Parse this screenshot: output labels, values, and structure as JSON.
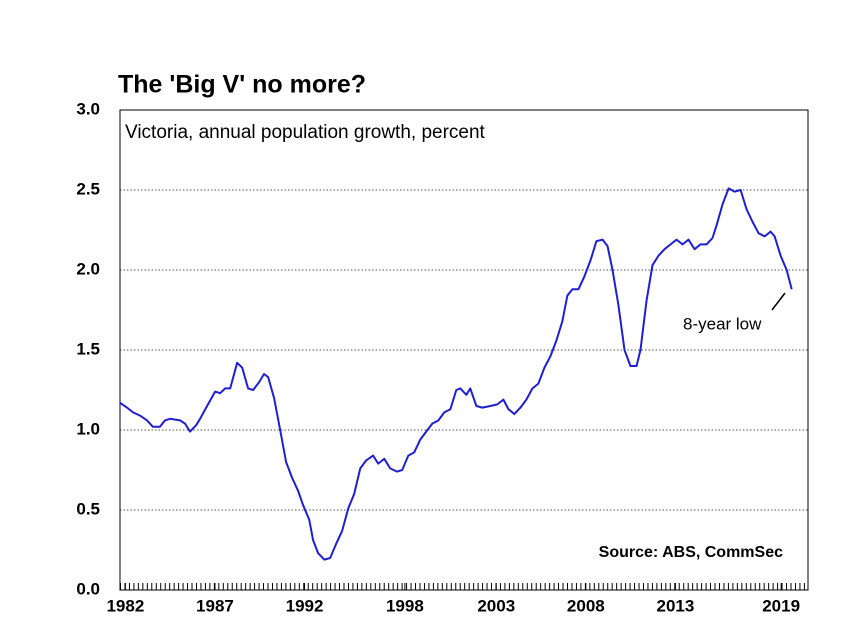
{
  "chart_data": {
    "type": "line",
    "title": "The 'Big V' no more?",
    "subtitle": "Victoria, annual population growth, percent",
    "source": "Source: ABS, CommSec",
    "annotation": "8-year low",
    "x": [
      1982.0,
      1982.39,
      1982.73,
      1983.12,
      1983.51,
      1983.84,
      1984.23,
      1984.51,
      1984.79,
      1985.35,
      1985.63,
      1985.91,
      1986.25,
      1986.47,
      1986.86,
      1987.31,
      1987.59,
      1987.87,
      1988.15,
      1988.54,
      1988.82,
      1989.15,
      1989.43,
      1989.77,
      1990.04,
      1990.27,
      1990.6,
      1990.94,
      1991.27,
      1991.61,
      1991.94,
      1992.22,
      1992.56,
      1992.78,
      1993.06,
      1993.4,
      1993.73,
      1994.07,
      1994.4,
      1994.74,
      1995.07,
      1995.41,
      1995.74,
      1996.13,
      1996.41,
      1996.75,
      1997.08,
      1997.47,
      1997.75,
      1998.09,
      1998.42,
      1998.76,
      1999.09,
      1999.43,
      1999.77,
      2000.1,
      2000.44,
      2000.77,
      2000.99,
      2001.33,
      2001.55,
      2001.89,
      2002.22,
      2002.67,
      2003.06,
      2003.4,
      2003.68,
      2004.01,
      2004.35,
      2004.68,
      2005.02,
      2005.35,
      2005.69,
      2006.02,
      2006.36,
      2006.69,
      2006.97,
      2007.25,
      2007.59,
      2007.92,
      2008.26,
      2008.59,
      2008.93,
      2009.21,
      2009.49,
      2009.82,
      2010.16,
      2010.49,
      2010.83,
      2011.05,
      2011.39,
      2011.72,
      2012.06,
      2012.39,
      2012.73,
      2013.06,
      2013.4,
      2013.73,
      2014.07,
      2014.4,
      2014.74,
      2015.07,
      2015.3,
      2015.63,
      2015.97,
      2016.3,
      2016.64,
      2016.97,
      2017.31,
      2017.64,
      2017.98,
      2018.31,
      2018.54,
      2018.87,
      2019.21,
      2019.49
    ],
    "series": [
      {
        "name": "Victoria",
        "color": "#1f1fd0",
        "values": [
          1.17,
          1.14,
          1.11,
          1.09,
          1.06,
          1.02,
          1.02,
          1.06,
          1.07,
          1.06,
          1.04,
          0.99,
          1.03,
          1.07,
          1.15,
          1.24,
          1.23,
          1.26,
          1.26,
          1.42,
          1.39,
          1.26,
          1.25,
          1.3,
          1.35,
          1.33,
          1.2,
          1.0,
          0.8,
          0.7,
          0.62,
          0.53,
          0.44,
          0.31,
          0.23,
          0.19,
          0.2,
          0.29,
          0.37,
          0.51,
          0.6,
          0.76,
          0.81,
          0.84,
          0.79,
          0.82,
          0.76,
          0.74,
          0.75,
          0.84,
          0.86,
          0.94,
          0.99,
          1.04,
          1.06,
          1.11,
          1.13,
          1.25,
          1.26,
          1.22,
          1.26,
          1.15,
          1.14,
          1.15,
          1.16,
          1.19,
          1.13,
          1.1,
          1.14,
          1.19,
          1.26,
          1.29,
          1.39,
          1.46,
          1.56,
          1.68,
          1.84,
          1.88,
          1.88,
          1.96,
          2.06,
          2.18,
          2.19,
          2.15,
          2.0,
          1.78,
          1.5,
          1.4,
          1.4,
          1.5,
          1.81,
          2.03,
          2.09,
          2.13,
          2.16,
          2.19,
          2.16,
          2.19,
          2.13,
          2.16,
          2.16,
          2.2,
          2.28,
          2.41,
          2.51,
          2.49,
          2.5,
          2.38,
          2.3,
          2.23,
          2.21,
          2.24,
          2.21,
          2.09,
          2.0,
          1.88
        ]
      }
    ],
    "xlim": [
      1982,
      2020.4
    ],
    "xticks": [
      1982.3,
      1987.3,
      1992.3,
      1997.9,
      2003,
      2008,
      2013,
      2018.9
    ],
    "xtick_labels": [
      "1982",
      "1987",
      "1992",
      "1998",
      "2003",
      "2008",
      "2013",
      "2019"
    ],
    "ylim": [
      0,
      3
    ],
    "yticks": [
      {
        "value": 0,
        "label": "0.0"
      },
      {
        "value": 0.5,
        "label": "0.5"
      },
      {
        "value": 1,
        "label": "1.0"
      },
      {
        "value": 1.5,
        "label": "1.5"
      },
      {
        "value": 2,
        "label": "2.0"
      },
      {
        "value": 2.5,
        "label": "2.5"
      },
      {
        "value": 3,
        "label": "3.0"
      }
    ],
    "grid": true
  }
}
